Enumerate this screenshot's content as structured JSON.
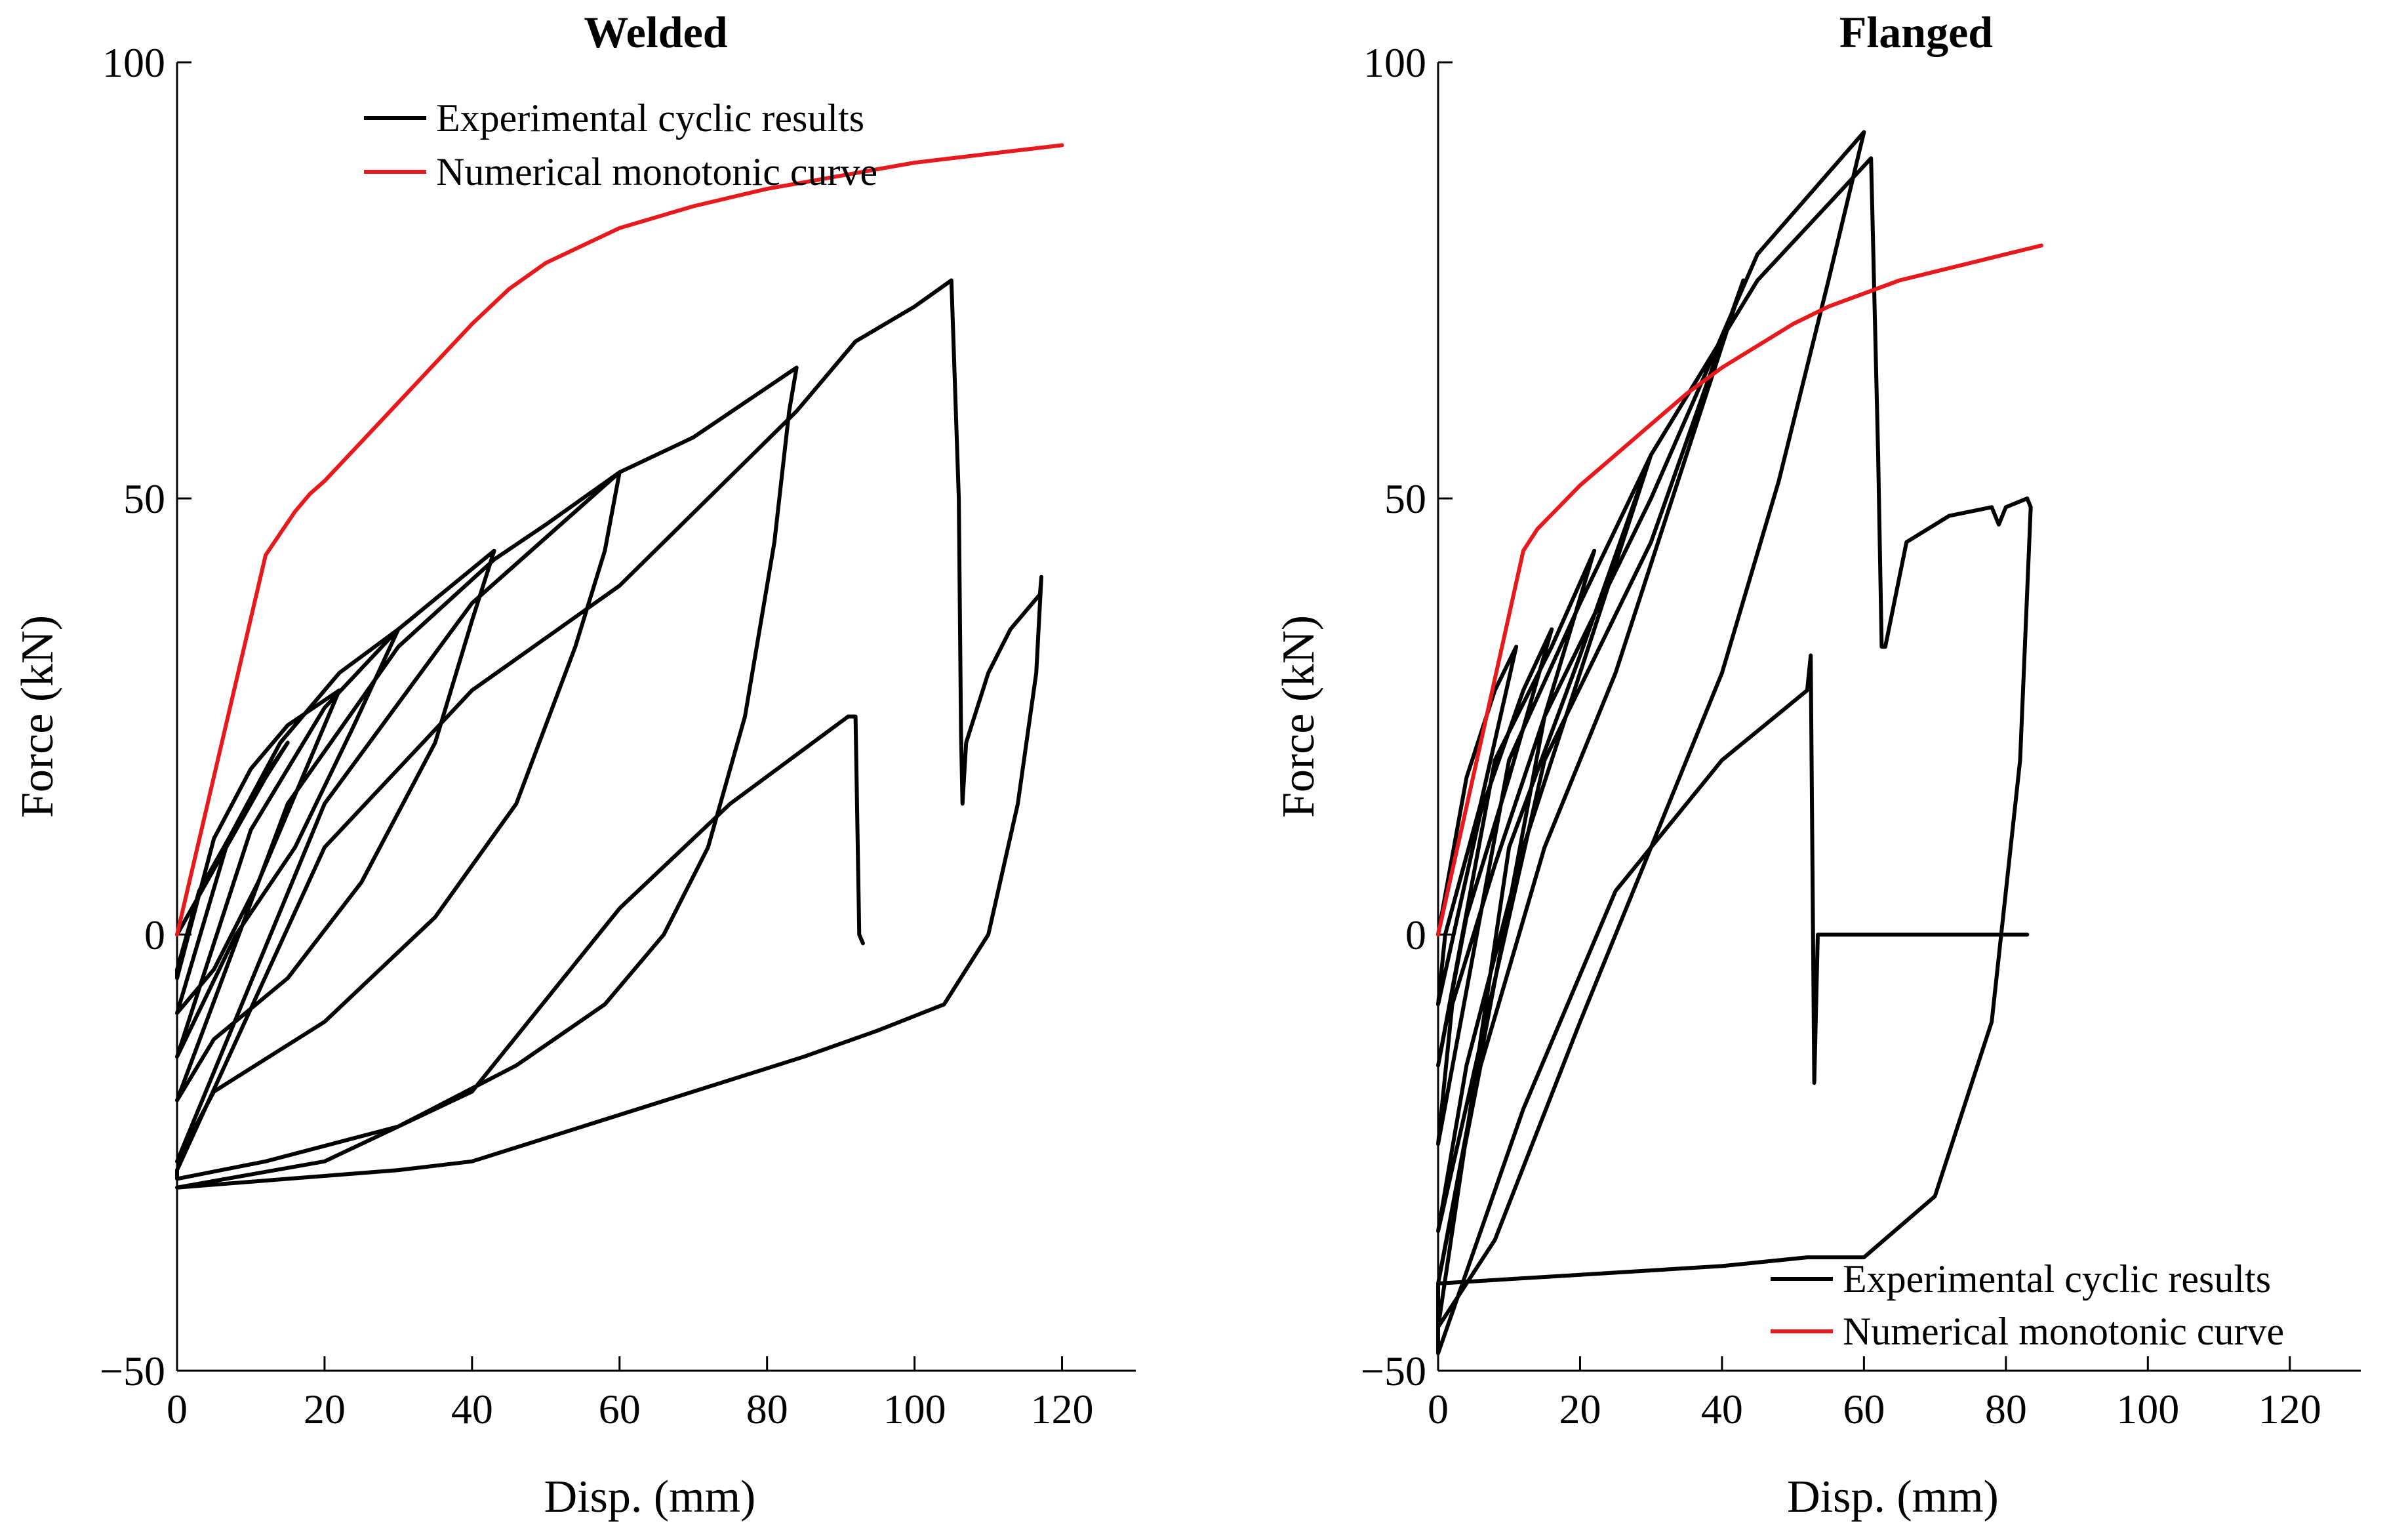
{
  "colors": {
    "experimental": "#000000",
    "numerical": "#e8191c",
    "axis": "#000000",
    "background": "#ffffff"
  },
  "chart_data": [
    {
      "type": "line",
      "title": "Welded",
      "xlabel": "Disp. (mm)",
      "ylabel": "Force (kN)",
      "xlim": [
        0,
        130
      ],
      "ylim": [
        -50,
        100
      ],
      "xticks": [
        0,
        20,
        40,
        60,
        80,
        100,
        120
      ],
      "yticks": [
        -50,
        0,
        50,
        100
      ],
      "xtick_labels": [
        "0",
        "20",
        "40",
        "60",
        "80",
        "100",
        "120"
      ],
      "ytick_labels": [
        "−50",
        "0",
        "50",
        "100"
      ],
      "grid": false,
      "legend_position": "top",
      "legend": [
        "Experimental cyclic results",
        "Numerical monotonic curve"
      ],
      "series": [
        {
          "name": "Experimental cyclic results",
          "color": "#000000",
          "x": [
            0,
            4,
            8,
            12,
            15,
            11,
            7,
            3,
            0,
            0,
            5,
            10,
            15,
            22,
            17,
            11,
            5,
            0,
            0,
            7,
            14,
            22,
            30,
            24,
            16,
            8,
            0,
            0,
            10,
            20,
            30,
            43,
            40,
            35,
            25,
            15,
            5,
            0,
            0,
            15,
            30,
            43,
            50,
            60,
            58,
            54,
            46,
            35,
            20,
            5,
            0,
            0,
            20,
            40,
            60,
            70,
            84,
            83,
            81,
            77,
            72,
            66,
            58,
            46,
            30,
            12,
            0,
            0,
            20,
            40,
            60,
            84,
            92,
            100,
            105,
            106,
            106.3,
            106.5,
            107,
            110,
            113,
            117,
            117.2,
            116.5,
            114,
            110,
            104,
            95,
            85,
            70,
            55,
            40,
            30,
            15,
            0,
            0,
            20,
            40,
            60,
            75,
            91,
            92,
            92.5,
            93
          ],
          "y": [
            0,
            6,
            12,
            18,
            22,
            17,
            11,
            5,
            -4,
            -5,
            11,
            19,
            24,
            28,
            18,
            6,
            -4,
            -9,
            -9,
            11,
            22,
            30,
            35,
            24,
            10,
            0,
            -14,
            -14,
            12,
            26,
            35,
            44,
            36,
            22,
            6,
            -5,
            -12,
            -19,
            -19,
            15,
            33,
            43,
            47,
            53,
            44,
            33,
            15,
            2,
            -10,
            -18,
            -26,
            -26,
            15,
            38,
            53,
            57,
            65,
            60,
            45,
            25,
            10,
            0,
            -8,
            -15,
            -22,
            -26,
            -28,
            -27,
            10,
            28,
            40,
            60,
            68,
            72,
            75,
            50,
            23,
            15,
            22,
            30,
            35,
            39,
            41,
            30,
            15,
            0,
            -8,
            -11,
            -14,
            -18,
            -22,
            -26,
            -27,
            -28,
            -29,
            -29,
            -26,
            -18,
            3,
            15,
            25,
            25,
            0,
            -1
          ]
        },
        {
          "name": "Numerical monotonic curve",
          "color": "#e8191c",
          "x": [
            0,
            12,
            14,
            16,
            18,
            20,
            25,
            30,
            35,
            40,
            45,
            50,
            55,
            60,
            70,
            80,
            90,
            100,
            110,
            120
          ],
          "y": [
            0,
            43.5,
            46,
            48.5,
            50.5,
            52,
            56.5,
            61,
            65.5,
            70,
            74,
            77,
            79,
            81,
            83.5,
            85.5,
            87,
            88.5,
            89.5,
            90.5
          ]
        }
      ]
    },
    {
      "type": "line",
      "title": "Flanged",
      "xlabel": "Disp. (mm)",
      "ylabel": "Force (kN)",
      "xlim": [
        0,
        130
      ],
      "ylim": [
        -50,
        100
      ],
      "xticks": [
        0,
        20,
        40,
        60,
        80,
        100,
        120
      ],
      "yticks": [
        -50,
        0,
        50,
        100
      ],
      "xtick_labels": [
        "0",
        "20",
        "40",
        "60",
        "80",
        "100",
        "120"
      ],
      "ytick_labels": [
        "−50",
        "0",
        "50",
        "100"
      ],
      "grid": false,
      "legend_position": "bottom-right",
      "legend": [
        "Experimental cyclic results",
        "Numerical monotonic curve"
      ],
      "series": [
        {
          "name": "Experimental cyclic results",
          "color": "#000000",
          "x": [
            0,
            4,
            8,
            11,
            6,
            1,
            0,
            6,
            12,
            16,
            10,
            4,
            0,
            0,
            8,
            16,
            22,
            15,
            8,
            2,
            0,
            0,
            10,
            20,
            30,
            22,
            12,
            4,
            0,
            0,
            15,
            30,
            43,
            35,
            25,
            15,
            6,
            0,
            0,
            15,
            30,
            45,
            60,
            55,
            48,
            40,
            30,
            20,
            8,
            0,
            0,
            10,
            20,
            30,
            45,
            61,
            62,
            62.5,
            63,
            66,
            72,
            78,
            79,
            80,
            83,
            83.5,
            82,
            78,
            70,
            60,
            52,
            40,
            20,
            0,
            0,
            12,
            25,
            40,
            52,
            52.5,
            53,
            53.5,
            60,
            70,
            83
          ],
          "y": [
            0,
            18,
            28,
            33,
            15,
            0,
            -8,
            14,
            28,
            35,
            18,
            2,
            -15,
            -15,
            20,
            33,
            44,
            25,
            8,
            -8,
            -24,
            -24,
            20,
            38,
            55,
            35,
            10,
            -15,
            -34,
            -34,
            20,
            45,
            75,
            55,
            30,
            10,
            -15,
            -40,
            -40,
            25,
            50,
            78,
            92,
            75,
            52,
            30,
            10,
            -10,
            -35,
            -45,
            -45,
            10,
            32,
            55,
            75,
            89,
            55,
            33,
            33,
            45,
            48,
            49,
            47,
            49,
            50,
            49,
            20,
            -10,
            -30,
            -37,
            -37,
            -38,
            -39,
            -40,
            -48,
            -20,
            5,
            20,
            28,
            32,
            -17,
            0,
            0,
            0,
            0
          ]
        },
        {
          "name": "Numerical monotonic curve",
          "color": "#e8191c",
          "x": [
            0,
            12,
            14,
            17,
            20,
            25,
            30,
            35,
            40,
            45,
            50,
            55,
            60,
            65,
            70,
            75,
            80,
            85
          ],
          "y": [
            0,
            44,
            46.5,
            49,
            51.5,
            55,
            58.5,
            62,
            65,
            67.5,
            70,
            72,
            73.5,
            75,
            76,
            77,
            78,
            79
          ]
        }
      ]
    }
  ]
}
